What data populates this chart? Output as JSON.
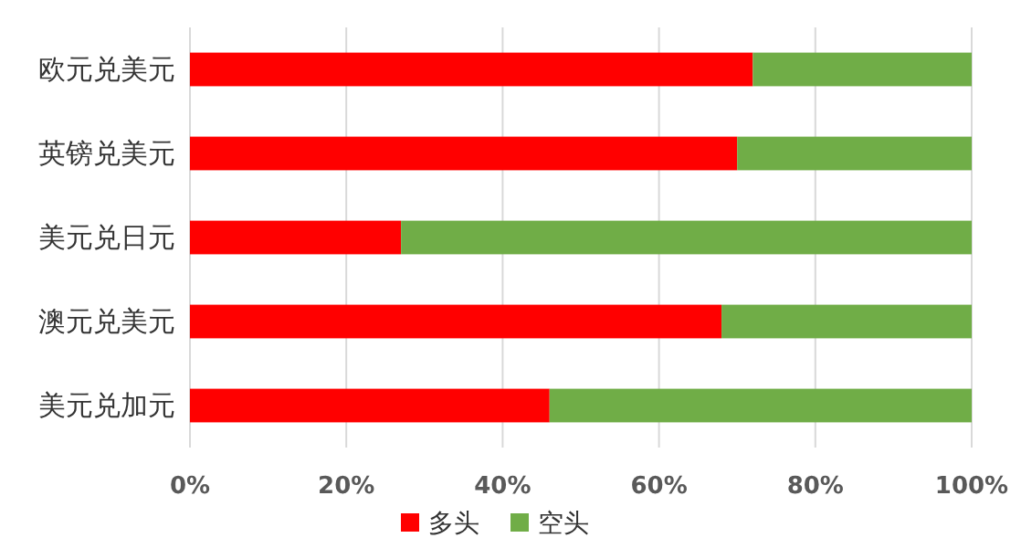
{
  "chart_data": {
    "type": "bar",
    "orientation": "horizontal",
    "stacked": true,
    "categories": [
      "欧元兑美元",
      "英镑兑美元",
      "美元兑日元",
      "澳元兑美元",
      "美元兑加元"
    ],
    "series": [
      {
        "name": "多头",
        "color": "#ff0000",
        "values": [
          72,
          70,
          27,
          68,
          46
        ]
      },
      {
        "name": "空头",
        "color": "#70ad47",
        "values": [
          28,
          30,
          73,
          32,
          54
        ]
      }
    ],
    "xlim": [
      0,
      100
    ],
    "xticks": [
      {
        "value": 0,
        "label": "0%"
      },
      {
        "value": 20,
        "label": "20%"
      },
      {
        "value": 40,
        "label": "40%"
      },
      {
        "value": 60,
        "label": "60%"
      },
      {
        "value": 80,
        "label": "80%"
      },
      {
        "value": 100,
        "label": "100%"
      }
    ],
    "grid": "x",
    "legend": "bottom"
  }
}
